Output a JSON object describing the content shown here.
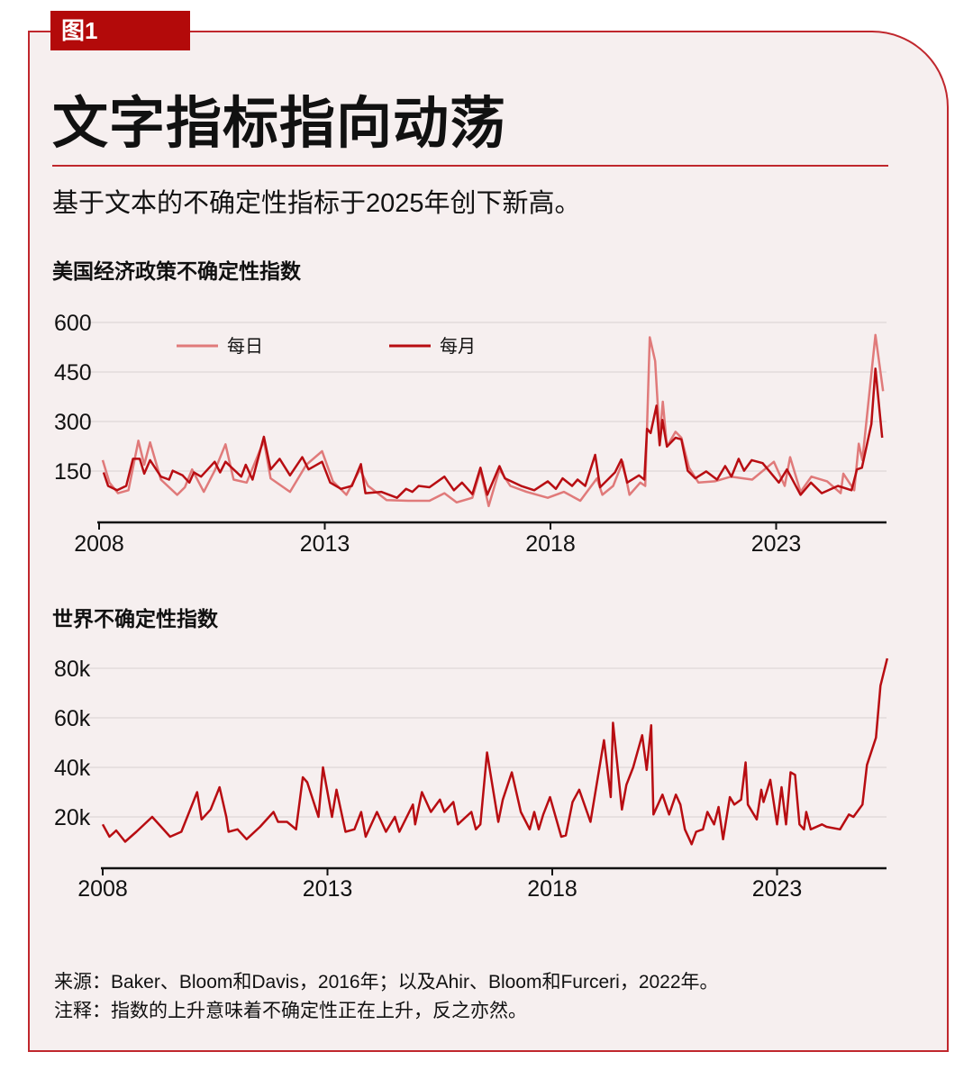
{
  "figure_label": "图1",
  "title": "文字指标指向动荡",
  "subtitle": "基于文本的不确定性指标于2025年创下新高。",
  "colors": {
    "accent": "#c0272d",
    "daily": "#e07a7a",
    "monthly": "#b80d12",
    "label_bg": "#b30a0a",
    "background": "#f6efef"
  },
  "chart_data": [
    {
      "type": "line",
      "title": "美国经济政策不确定性指数",
      "xlim": [
        2008,
        2025.45
      ],
      "ylim": [
        0,
        600
      ],
      "yticks": [
        150,
        300,
        450,
        600
      ],
      "ytick_labels": [
        "150",
        "300",
        "450",
        "600"
      ],
      "xticks": [
        2008,
        2013,
        2018,
        2023
      ],
      "xtick_labels": [
        "2008",
        "2013",
        "2018",
        "2023"
      ],
      "grid": true,
      "legend_placement": "top-left",
      "series": [
        {
          "name": "每日",
          "color": "#e07a7a",
          "x": [
            2008.08,
            2008.23,
            2008.42,
            2008.65,
            2008.87,
            2009.0,
            2009.13,
            2009.37,
            2009.73,
            2009.9,
            2010.06,
            2010.32,
            2010.56,
            2010.8,
            2010.98,
            2011.27,
            2011.65,
            2011.8,
            2012.23,
            2012.59,
            2012.94,
            2013.18,
            2013.48,
            2013.78,
            2013.96,
            2014.37,
            2014.85,
            2015.32,
            2015.65,
            2015.92,
            2016.27,
            2016.45,
            2016.63,
            2016.87,
            2017.11,
            2017.47,
            2017.94,
            2018.3,
            2018.66,
            2019.03,
            2019.15,
            2019.39,
            2019.6,
            2019.75,
            2019.99,
            2020.1,
            2020.2,
            2020.32,
            2020.42,
            2020.49,
            2020.58,
            2020.77,
            2020.9,
            2021.07,
            2021.28,
            2021.64,
            2022.0,
            2022.47,
            2022.95,
            2023.19,
            2023.31,
            2023.54,
            2023.78,
            2024.13,
            2024.43,
            2024.49,
            2024.73,
            2024.83,
            2024.91,
            2025.2,
            2025.37
          ],
          "y": [
            183,
            115,
            83,
            92,
            242,
            169,
            237,
            124,
            78,
            101,
            155,
            87,
            151,
            231,
            124,
            115,
            242,
            128,
            87,
            169,
            210,
            119,
            78,
            155,
            105,
            62,
            60,
            60,
            83,
            55,
            69,
            153,
            44,
            155,
            105,
            87,
            69,
            87,
            60,
            128,
            78,
            105,
            178,
            78,
            115,
            105,
            555,
            483,
            251,
            360,
            224,
            269,
            251,
            160,
            115,
            119,
            133,
            124,
            178,
            105,
            192,
            87,
            133,
            119,
            83,
            142,
            92,
            233,
            183,
            562,
            392
          ]
        },
        {
          "name": "每月",
          "color": "#b80d12",
          "x": [
            2008.1,
            2008.2,
            2008.4,
            2008.6,
            2008.75,
            2008.9,
            2009.0,
            2009.13,
            2009.37,
            2009.55,
            2009.63,
            2009.85,
            2010.0,
            2010.1,
            2010.26,
            2010.56,
            2010.68,
            2010.8,
            2011.15,
            2011.25,
            2011.4,
            2011.65,
            2011.8,
            2012.0,
            2012.23,
            2012.5,
            2012.64,
            2012.94,
            2013.12,
            2013.36,
            2013.6,
            2013.8,
            2013.9,
            2014.25,
            2014.6,
            2014.8,
            2014.94,
            2015.08,
            2015.32,
            2015.65,
            2015.86,
            2016.04,
            2016.27,
            2016.45,
            2016.6,
            2016.87,
            2016.99,
            2017.35,
            2017.64,
            2017.94,
            2018.12,
            2018.27,
            2018.48,
            2018.6,
            2018.77,
            2018.99,
            2019.1,
            2019.43,
            2019.57,
            2019.7,
            2019.96,
            2020.08,
            2020.14,
            2020.22,
            2020.35,
            2020.42,
            2020.48,
            2020.58,
            2020.77,
            2020.9,
            2021.04,
            2021.21,
            2021.45,
            2021.69,
            2021.87,
            2022.01,
            2022.17,
            2022.29,
            2022.46,
            2022.7,
            2023.06,
            2023.24,
            2023.54,
            2023.77,
            2024.01,
            2024.37,
            2024.67,
            2024.79,
            2024.9,
            2025.11,
            2025.2,
            2025.35
          ],
          "y": [
            146,
            105,
            92,
            105,
            187,
            187,
            142,
            183,
            133,
            124,
            151,
            137,
            115,
            146,
            133,
            178,
            146,
            178,
            133,
            169,
            124,
            254,
            155,
            187,
            137,
            192,
            155,
            178,
            115,
            96,
            105,
            171,
            83,
            87,
            69,
            96,
            87,
            105,
            101,
            133,
            92,
            115,
            80,
            160,
            78,
            165,
            128,
            105,
            92,
            119,
            96,
            128,
            105,
            124,
            105,
            199,
            101,
            146,
            185,
            115,
            137,
            124,
            278,
            265,
            348,
            228,
            305,
            224,
            251,
            246,
            151,
            128,
            149,
            124,
            165,
            133,
            187,
            151,
            183,
            174,
            115,
            155,
            78,
            115,
            83,
            105,
            92,
            155,
            160,
            292,
            460,
            251
          ]
        }
      ]
    },
    {
      "type": "line",
      "title": "世界不确定性指数",
      "xlim": [
        2008,
        2025.45
      ],
      "ylim": [
        0,
        80000
      ],
      "yticks": [
        20000,
        40000,
        60000,
        80000
      ],
      "ytick_labels": [
        "20k",
        "40k",
        "60k",
        "80k"
      ],
      "xticks": [
        2008,
        2013,
        2018,
        2023
      ],
      "xtick_labels": [
        "2008",
        "2013",
        "2018",
        "2023"
      ],
      "grid": true,
      "series": [
        {
          "color": "#b80d12",
          "x": [
            2008.0,
            2008.15,
            2008.3,
            2008.5,
            2008.75,
            2009.1,
            2009.3,
            2009.5,
            2009.75,
            2010.1,
            2010.2,
            2010.4,
            2010.6,
            2010.75,
            2010.8,
            2011.0,
            2011.2,
            2011.5,
            2011.8,
            2011.9,
            2012.1,
            2012.3,
            2012.45,
            2012.55,
            2012.8,
            2012.9,
            2013.1,
            2013.2,
            2013.4,
            2013.6,
            2013.75,
            2013.85,
            2014.1,
            2014.3,
            2014.5,
            2014.6,
            2014.9,
            2014.95,
            2015.1,
            2015.3,
            2015.5,
            2015.6,
            2015.8,
            2015.9,
            2016.2,
            2016.3,
            2016.4,
            2016.55,
            2016.8,
            2016.9,
            2017.1,
            2017.3,
            2017.5,
            2017.6,
            2017.7,
            2017.8,
            2017.95,
            2018.2,
            2018.3,
            2018.45,
            2018.6,
            2018.85,
            2019.15,
            2019.3,
            2019.35,
            2019.55,
            2019.65,
            2019.8,
            2020.0,
            2020.1,
            2020.2,
            2020.25,
            2020.45,
            2020.6,
            2020.75,
            2020.85,
            2020.95,
            2021.1,
            2021.2,
            2021.35,
            2021.45,
            2021.6,
            2021.7,
            2021.8,
            2021.95,
            2022.05,
            2022.2,
            2022.3,
            2022.35,
            2022.55,
            2022.65,
            2022.7,
            2022.85,
            2023.0,
            2023.1,
            2023.2,
            2023.3,
            2023.4,
            2023.5,
            2023.6,
            2023.65,
            2023.75,
            2024.0,
            2024.1,
            2024.4,
            2024.6,
            2024.7,
            2024.9,
            2025.0,
            2025.2,
            2025.3,
            2025.45
          ],
          "y": [
            17000,
            12000,
            14500,
            10000,
            14000,
            20000,
            16000,
            12000,
            14000,
            30000,
            19000,
            23000,
            32000,
            20000,
            14000,
            15000,
            11000,
            16000,
            22000,
            18000,
            18000,
            15000,
            36000,
            34000,
            20000,
            40000,
            20000,
            31000,
            14000,
            15000,
            22000,
            12000,
            22000,
            14000,
            20000,
            14000,
            25000,
            17000,
            30000,
            22000,
            27000,
            22000,
            26000,
            17000,
            22000,
            15000,
            17000,
            46000,
            18000,
            27000,
            38000,
            22000,
            15000,
            22000,
            15000,
            21000,
            28000,
            12000,
            12500,
            26000,
            31000,
            18000,
            51000,
            28000,
            58000,
            23000,
            33000,
            40000,
            53000,
            39000,
            57000,
            21000,
            29000,
            21000,
            29000,
            25000,
            15000,
            9000,
            14000,
            15000,
            22000,
            17000,
            24000,
            11000,
            28000,
            25000,
            27000,
            42000,
            25000,
            19000,
            31000,
            26000,
            35000,
            17000,
            32000,
            17000,
            38000,
            37000,
            17000,
            15000,
            22000,
            15000,
            17000,
            16000,
            15000,
            21000,
            20000,
            25000,
            41000,
            52000,
            73000,
            84000
          ]
        }
      ]
    }
  ],
  "footer": {
    "source": "来源：Baker、Bloom和Davis，2016年；以及Ahir、Bloom和Furceri，2022年。",
    "note": "注释：指数的上升意味着不确定性正在上升，反之亦然。"
  }
}
